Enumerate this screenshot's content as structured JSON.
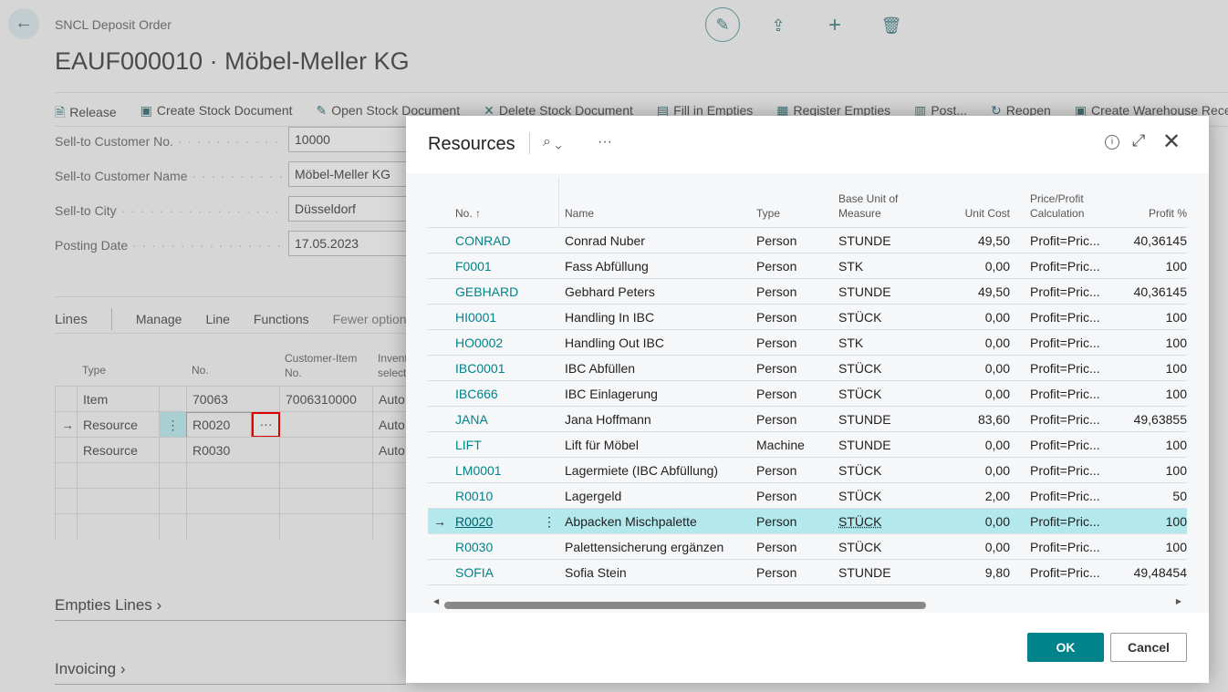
{
  "page": {
    "breadcrumb": "SNCL Deposit Order",
    "title": "EAUF000010 · Möbel-Meller KG"
  },
  "top_icons": [
    "edit-icon",
    "share-icon",
    "plus-icon",
    "delete-icon"
  ],
  "actions": [
    {
      "label": "Release",
      "icon": "release-icon"
    },
    {
      "label": "Create Stock Document",
      "icon": "create-doc-icon"
    },
    {
      "label": "Open Stock Document",
      "icon": "open-doc-icon"
    },
    {
      "label": "Delete Stock Document",
      "icon": "delete-x-icon"
    },
    {
      "label": "Fill in Empties",
      "icon": "fill-icon"
    },
    {
      "label": "Register Empties",
      "icon": "register-icon"
    },
    {
      "label": "Post...",
      "icon": "post-icon"
    },
    {
      "label": "Reopen",
      "icon": "reopen-icon"
    },
    {
      "label": "Create Warehouse Rece",
      "icon": "warehouse-icon"
    }
  ],
  "fields": [
    {
      "label": "Sell-to Customer No.",
      "value": "10000"
    },
    {
      "label": "Sell-to Customer Name",
      "value": "Möbel-Meller KG"
    },
    {
      "label": "Sell-to City",
      "value": "Düsseldorf"
    },
    {
      "label": "Posting Date",
      "value": "17.05.2023"
    }
  ],
  "lines": {
    "title": "Lines",
    "menu": [
      "Manage",
      "Line",
      "Functions",
      "Fewer options"
    ],
    "headers": {
      "type": "Type",
      "no": "No.",
      "cust_item": "Customer-Item No.",
      "inv": "Invent select"
    },
    "rows": [
      {
        "type": "Item",
        "no": "70063",
        "cust_item": "7006310000",
        "inv": "Auto"
      },
      {
        "type": "Resource",
        "no": "R0020",
        "cust_item": "",
        "inv": "Auto"
      },
      {
        "type": "Resource",
        "no": "R0030",
        "cust_item": "",
        "inv": "Auto"
      }
    ]
  },
  "sections": [
    "Empties Lines",
    "Invoicing"
  ],
  "dialog": {
    "title": "Resources",
    "columns": {
      "no": "No. ↑",
      "name": "Name",
      "type": "Type",
      "base_unit": "Base Unit of Measure",
      "unit_cost": "Unit Cost",
      "price_profit": "Price/Profit Calculation",
      "profit": "Profit %"
    },
    "rows": [
      {
        "no": "CONRAD",
        "name": "Conrad Nuber",
        "type": "Person",
        "unit": "STUNDE",
        "cost": "49,50",
        "calc": "Profit=Pric...",
        "profit": "40,36145"
      },
      {
        "no": "F0001",
        "name": "Fass Abfüllung",
        "type": "Person",
        "unit": "STK",
        "cost": "0,00",
        "calc": "Profit=Pric...",
        "profit": "100"
      },
      {
        "no": "GEBHARD",
        "name": "Gebhard Peters",
        "type": "Person",
        "unit": "STUNDE",
        "cost": "49,50",
        "calc": "Profit=Pric...",
        "profit": "40,36145"
      },
      {
        "no": "HI0001",
        "name": "Handling In IBC",
        "type": "Person",
        "unit": "STÜCK",
        "cost": "0,00",
        "calc": "Profit=Pric...",
        "profit": "100"
      },
      {
        "no": "HO0002",
        "name": "Handling Out IBC",
        "type": "Person",
        "unit": "STK",
        "cost": "0,00",
        "calc": "Profit=Pric...",
        "profit": "100"
      },
      {
        "no": "IBC0001",
        "name": "IBC Abfüllen",
        "type": "Person",
        "unit": "STÜCK",
        "cost": "0,00",
        "calc": "Profit=Pric...",
        "profit": "100"
      },
      {
        "no": "IBC666",
        "name": "IBC Einlagerung",
        "type": "Person",
        "unit": "STÜCK",
        "cost": "0,00",
        "calc": "Profit=Pric...",
        "profit": "100"
      },
      {
        "no": "JANA",
        "name": "Jana Hoffmann",
        "type": "Person",
        "unit": "STUNDE",
        "cost": "83,60",
        "calc": "Profit=Pric...",
        "profit": "49,63855"
      },
      {
        "no": "LIFT",
        "name": "Lift für Möbel",
        "type": "Machine",
        "unit": "STUNDE",
        "cost": "0,00",
        "calc": "Profit=Pric...",
        "profit": "100"
      },
      {
        "no": "LM0001",
        "name": "Lagermiete (IBC Abfüllung)",
        "type": "Person",
        "unit": "STÜCK",
        "cost": "0,00",
        "calc": "Profit=Pric...",
        "profit": "100"
      },
      {
        "no": "R0010",
        "name": "Lagergeld",
        "type": "Person",
        "unit": "STÜCK",
        "cost": "2,00",
        "calc": "Profit=Pric...",
        "profit": "50"
      },
      {
        "no": "R0020",
        "name": "Abpacken Mischpalette",
        "type": "Person",
        "unit": "STÜCK",
        "cost": "0,00",
        "calc": "Profit=Pric...",
        "profit": "100",
        "selected": true
      },
      {
        "no": "R0030",
        "name": "Palettensicherung ergänzen",
        "type": "Person",
        "unit": "STÜCK",
        "cost": "0,00",
        "calc": "Profit=Pric...",
        "profit": "100"
      },
      {
        "no": "SOFIA",
        "name": "Sofia Stein",
        "type": "Person",
        "unit": "STUNDE",
        "cost": "9,80",
        "calc": "Profit=Pric...",
        "profit": "49,48454"
      }
    ],
    "ok": "OK",
    "cancel": "Cancel",
    "accent": "#00838a",
    "selected_row_color": "#b3e8ec"
  }
}
